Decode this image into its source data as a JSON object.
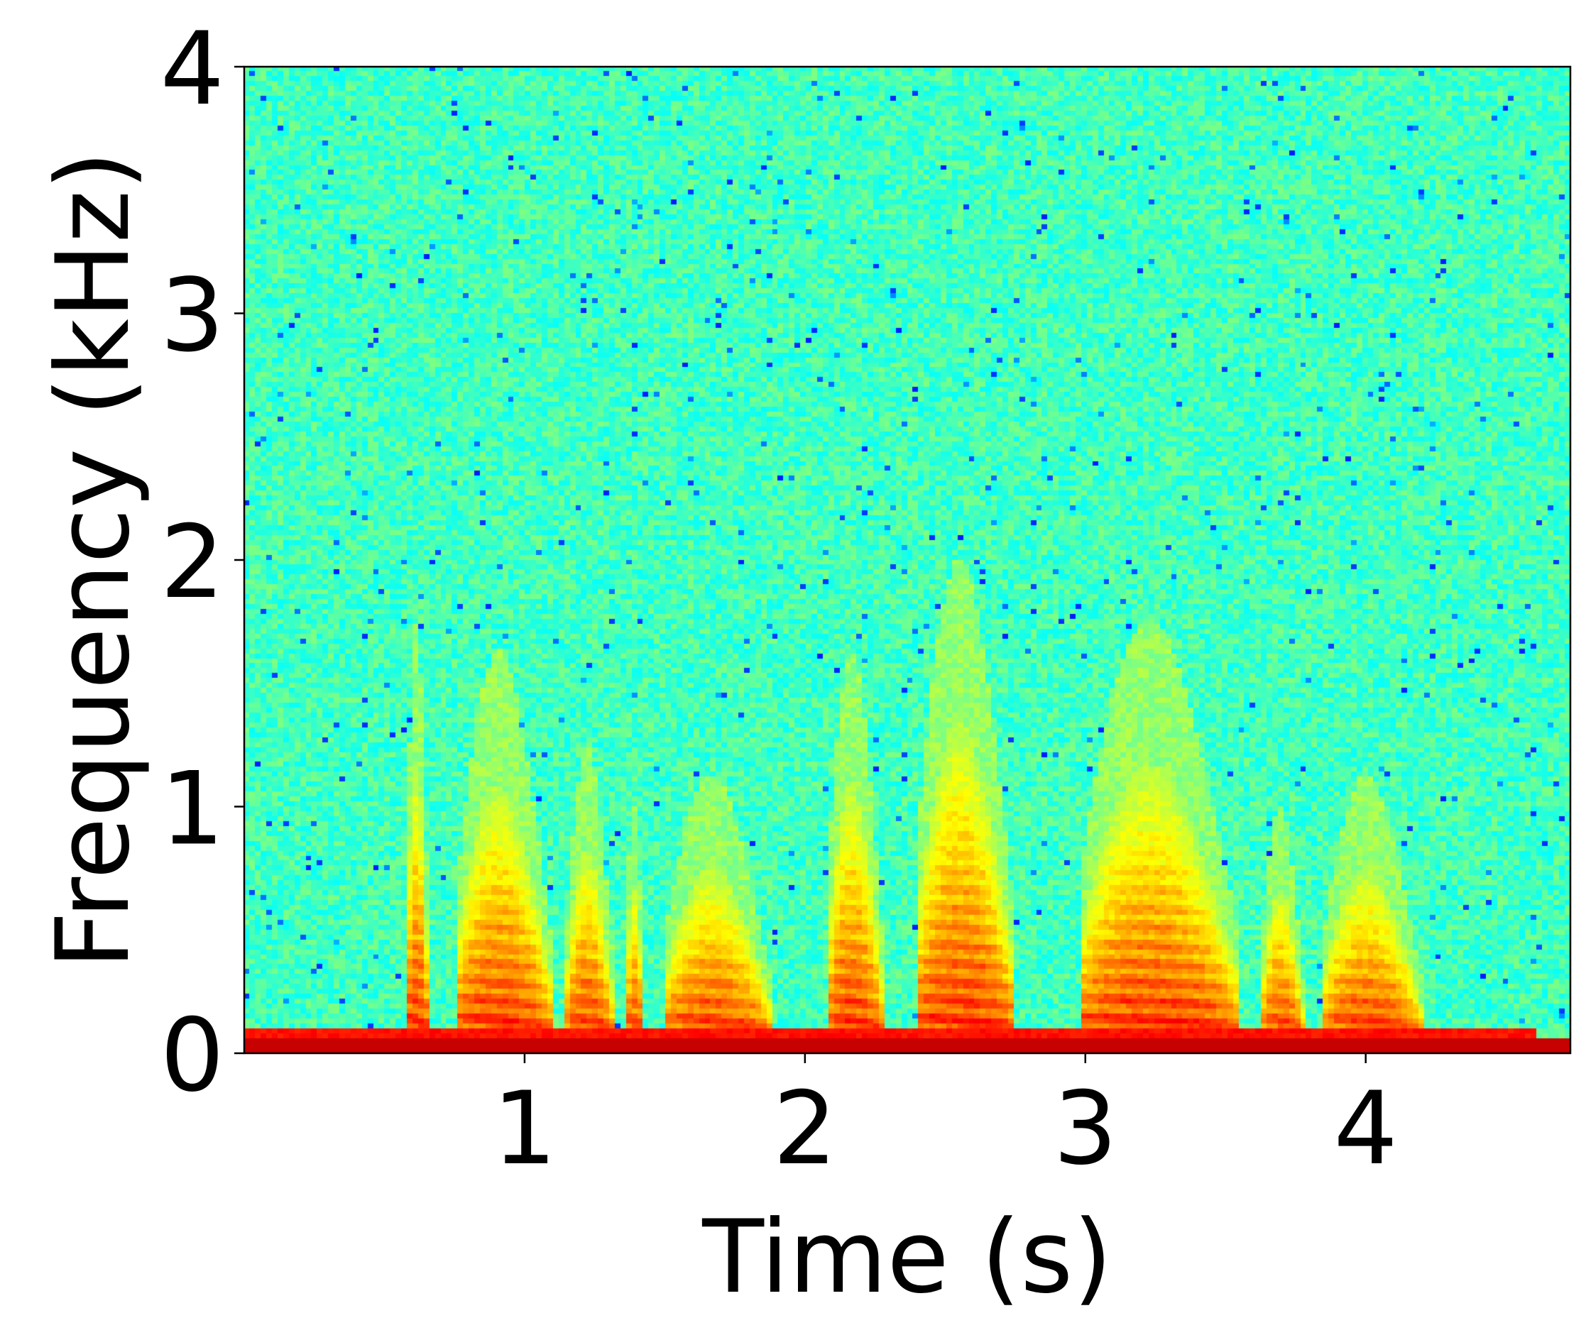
{
  "chart_data": {
    "type": "heatmap",
    "title": "",
    "xlabel": "Time (s)",
    "ylabel": "Frequency (kHz)",
    "xlim": [
      0,
      4.73
    ],
    "ylim": [
      0,
      4
    ],
    "xticks": [
      1,
      2,
      3,
      4
    ],
    "xtick_labels": [
      "1",
      "2",
      "3",
      "4"
    ],
    "yticks": [
      0,
      1,
      2,
      3,
      4
    ],
    "ytick_labels": [
      "0",
      "1",
      "2",
      "3",
      "4"
    ],
    "colormap": "jet",
    "colormap_stops": [
      "#00007f",
      "#0000ff",
      "#007fff",
      "#00ffff",
      "#7fff7f",
      "#ffff00",
      "#ff7f00",
      "#ff0000",
      "#7f0000"
    ],
    "background_colors": {
      "noise_floor": "#5cf5a0",
      "low_band": "#ff3000",
      "dc_band": "#a00000"
    },
    "grid": false,
    "legend": "none",
    "energy_segments": [
      {
        "start": 0.58,
        "end": 0.66,
        "max_kHz": 1.4
      },
      {
        "start": 0.76,
        "end": 1.1,
        "max_kHz": 1.3
      },
      {
        "start": 1.15,
        "end": 1.32,
        "max_kHz": 1.0
      },
      {
        "start": 1.36,
        "end": 1.43,
        "max_kHz": 0.8
      },
      {
        "start": 1.5,
        "end": 1.88,
        "max_kHz": 0.9
      },
      {
        "start": 2.08,
        "end": 2.28,
        "max_kHz": 1.3
      },
      {
        "start": 2.4,
        "end": 2.75,
        "max_kHz": 1.6
      },
      {
        "start": 2.98,
        "end": 3.55,
        "max_kHz": 1.4
      },
      {
        "start": 3.63,
        "end": 3.78,
        "max_kHz": 0.8
      },
      {
        "start": 3.85,
        "end": 4.2,
        "max_kHz": 0.9
      }
    ]
  }
}
